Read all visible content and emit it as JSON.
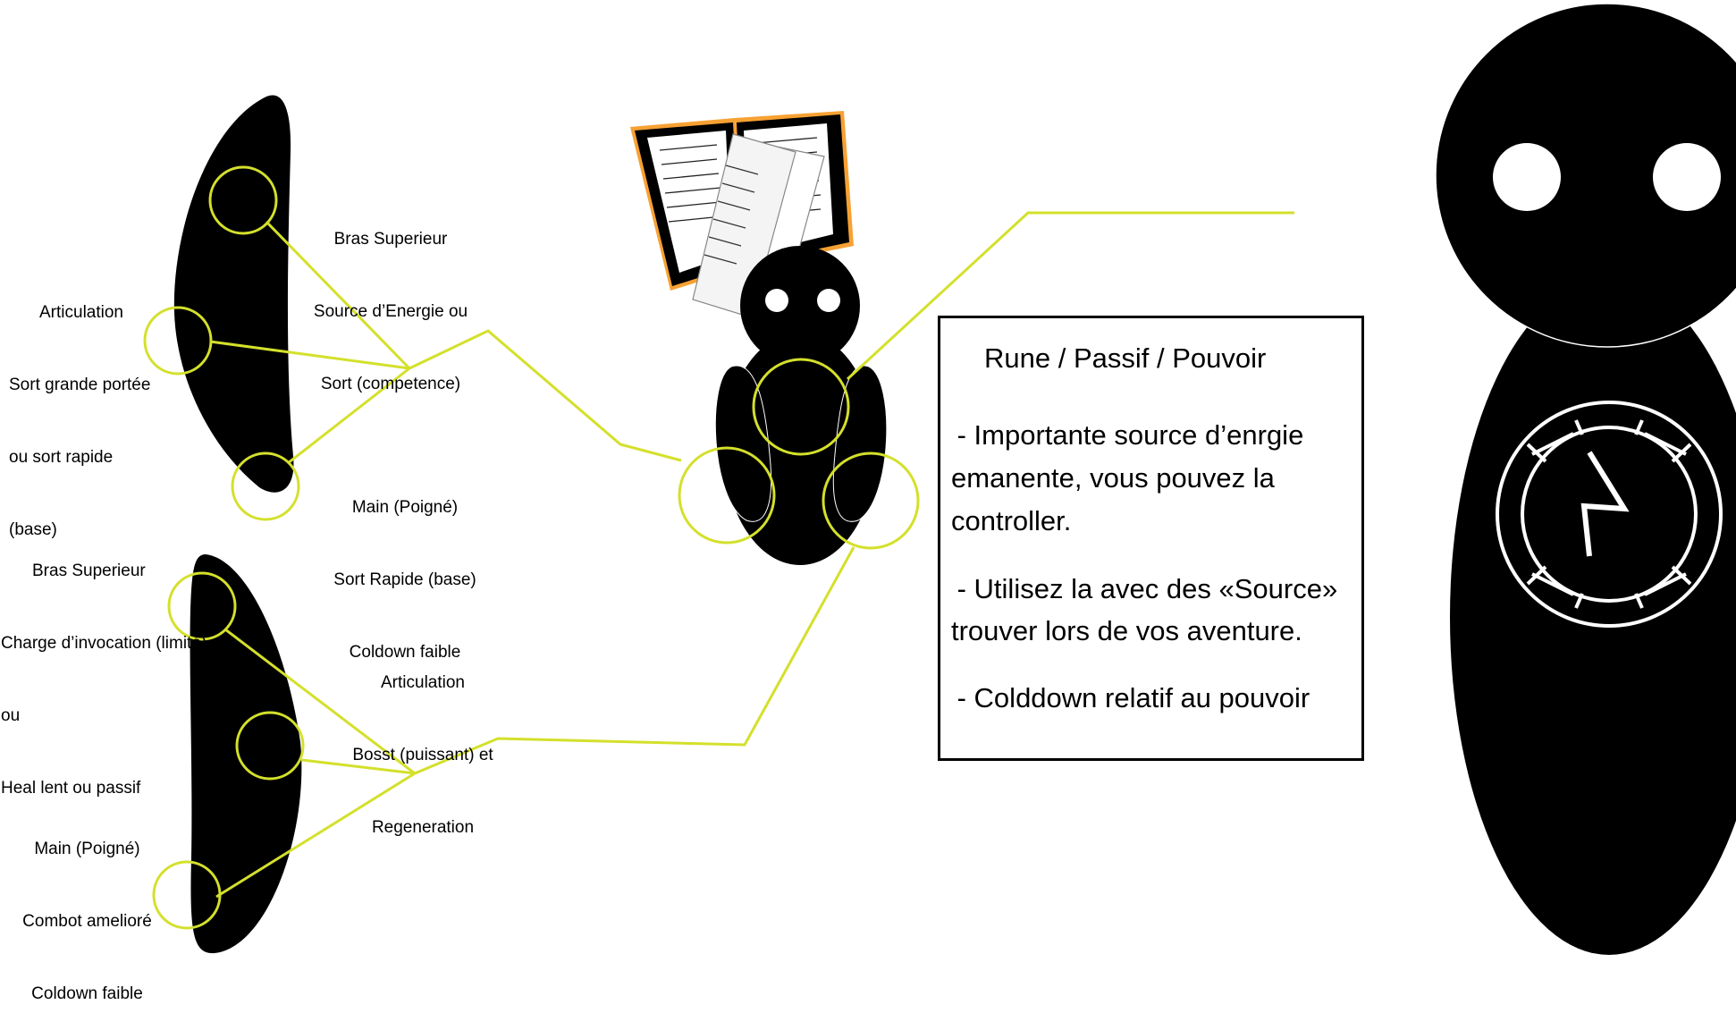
{
  "upper_arm": {
    "shoulder": [
      "Bras Superieur",
      "Source d’Energie ou",
      "Sort (competence)"
    ],
    "elbow": [
      "Articulation",
      "Sort grande portée",
      "ou sort rapide",
      "(base)"
    ],
    "hand": [
      "Main (Poigné)",
      "Sort Rapide (base)",
      "Coldown faible"
    ]
  },
  "lower_arm": {
    "shoulder": [
      "Bras Superieur",
      "Charge d’invocation (limité)",
      "ou",
      "Heal lent ou passif"
    ],
    "elbow": [
      "Articulation",
      "Bosst (puissant) et",
      "Regeneration"
    ],
    "hand": [
      "Main (Poigné)",
      "Combot amelioré",
      "Coldown faible"
    ]
  },
  "info_box": {
    "title": "Rune / Passif / Pouvoir",
    "line1": " - Importante source d’enrgie",
    "line2": "emanente, vous pouvez la",
    "line3": "controller.",
    "line4": " - Utilisez la avec des «Source»",
    "line5": "trouver lors de vos aventure.",
    "line6": " - Colddown relatif au pouvoir"
  },
  "colors": {
    "callout": "#d4e02b",
    "book_frame": "#f7a133",
    "body": "#000000"
  }
}
